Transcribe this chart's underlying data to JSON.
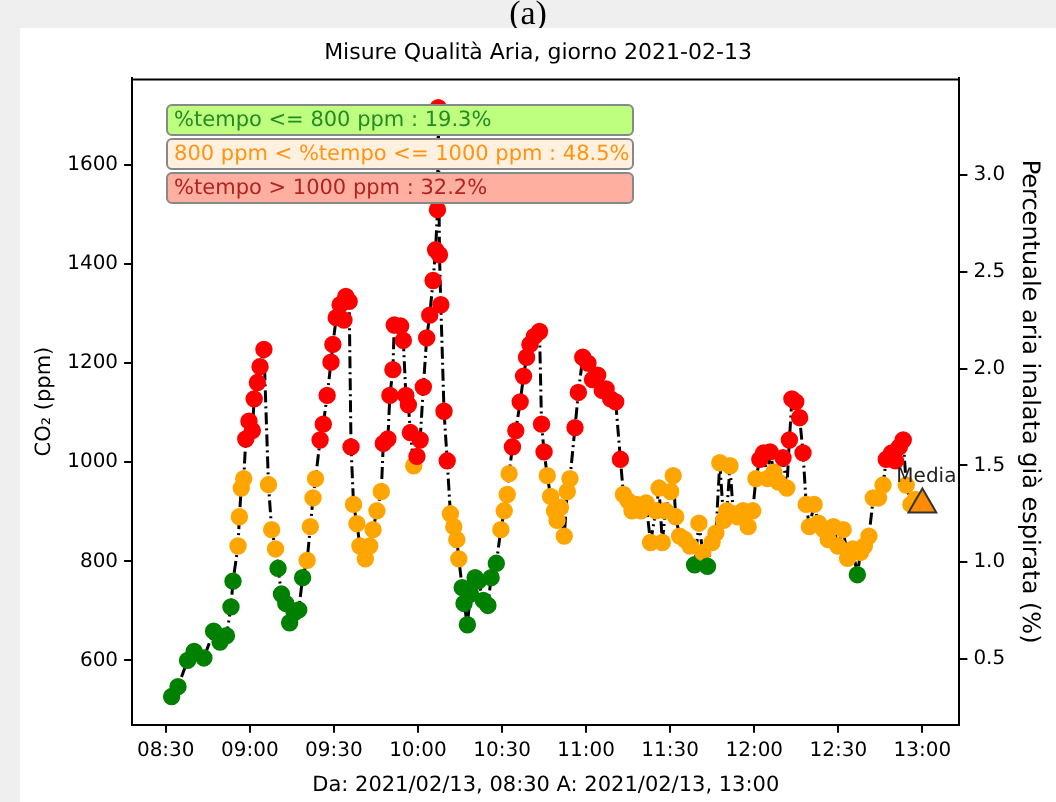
{
  "chart_data": {
    "type": "line",
    "title": "Misure Qualità Aria, giorno 2021-02-13",
    "xlabel": "Da: 2021/02/13, 08:30 A: 2021/02/13, 13:00",
    "ylabel": "CO₂ (ppm)",
    "y2label": "Percentuale aria inalata già espirata (%)",
    "xlim": [
      8.3,
      13.22
    ],
    "xticks": [
      {
        "value": 8.5,
        "label": "08:30"
      },
      {
        "value": 9,
        "label": "09:00"
      },
      {
        "value": 9.5,
        "label": "09:30"
      },
      {
        "value": 10,
        "label": "10:00"
      },
      {
        "value": 10.5,
        "label": "10:30"
      },
      {
        "value": 11,
        "label": "11:00"
      },
      {
        "value": 11.5,
        "label": "11:30"
      },
      {
        "value": 12,
        "label": "12:00"
      },
      {
        "value": 12.5,
        "label": "12:30"
      },
      {
        "value": 13,
        "label": "13:00"
      }
    ],
    "ylim": [
      470,
      1775
    ],
    "yticks": [
      600,
      800,
      1000,
      1200,
      1400,
      1600
    ],
    "y2lim": [
      0.16,
      3.5
    ],
    "y2ticks": [
      {
        "value": 0.5,
        "label": "0.5"
      },
      {
        "value": 1,
        "label": "1.0"
      },
      {
        "value": 1.5,
        "label": "1.5"
      },
      {
        "value": 2,
        "label": "2.0"
      },
      {
        "value": 2.5,
        "label": "2.5"
      },
      {
        "value": 3,
        "label": "3.0"
      }
    ],
    "grid": false,
    "legend": false,
    "marker": "circle",
    "line_style": "dashed",
    "annotations": [
      "%tempo <= 800 ppm : 19.3%",
      "800 ppm < %tempo <= 1000 ppm : 48.5%",
      "%tempo > 1000 ppm : 32.2%",
      "(a)",
      {
        "text": "Media",
        "x": 13.0,
        "y": 915
      }
    ],
    "series": [
      {
        "color": "#000000",
        "x": [
          8.535,
          8.573,
          8.63,
          8.669,
          8.727,
          8.785,
          8.823,
          8.861,
          8.888,
          8.9,
          8.93,
          8.938,
          8.949,
          8.964,
          8.976,
          8.995,
          9.015,
          9.026,
          9.045,
          9.061,
          9.084,
          9.111,
          9.13,
          9.153,
          9.168,
          9.188,
          9.214,
          9.237,
          9.264,
          9.291,
          9.314,
          9.341,
          9.36,
          9.376,
          9.391,
          9.418,
          9.437,
          9.46,
          9.483,
          9.494,
          9.514,
          9.537,
          9.56,
          9.571,
          9.591,
          9.602,
          9.617,
          9.637,
          9.655,
          9.687,
          9.713,
          9.733,
          9.756,
          9.782,
          9.794,
          9.821,
          9.833,
          9.851,
          9.859,
          9.897,
          9.913,
          9.928,
          9.943,
          9.955,
          9.975,
          9.994,
          10.013,
          10.032,
          10.052,
          10.07,
          10.09,
          10.105,
          10.116,
          10.121,
          10.128,
          10.136,
          10.155,
          10.174,
          10.193,
          10.213,
          10.231,
          10.243,
          10.263,
          10.274,
          10.294,
          10.312,
          10.34,
          10.358,
          10.389,
          10.416,
          10.435,
          10.466,
          10.493,
          10.513,
          10.531,
          10.542,
          10.562,
          10.582,
          10.608,
          10.628,
          10.646,
          10.666,
          10.692,
          10.723,
          10.735,
          10.75,
          10.769,
          10.789,
          10.812,
          10.827,
          10.847,
          10.87,
          10.888,
          10.904,
          10.934,
          10.954,
          10.98,
          11.011,
          11.038,
          11.069,
          11.096,
          11.119,
          11.146,
          11.176,
          11.204,
          11.222,
          11.25,
          11.273,
          11.299,
          11.326,
          11.357,
          11.383,
          11.415,
          11.434,
          11.453,
          11.472,
          11.503,
          11.518,
          11.533,
          11.556,
          11.587,
          11.618,
          11.645,
          11.671,
          11.694,
          11.722,
          11.749,
          11.772,
          11.795,
          11.818,
          11.837,
          11.856,
          11.875,
          11.902,
          11.933,
          11.964,
          11.991,
          12.01,
          12.033,
          12.056,
          12.079,
          12.094,
          12.117,
          12.144,
          12.171,
          12.194,
          12.209,
          12.224,
          12.247,
          12.27,
          12.29,
          12.309,
          12.328,
          12.356,
          12.382,
          12.413,
          12.44,
          12.471,
          12.497,
          12.529,
          12.555,
          12.586,
          12.613,
          12.632,
          12.655,
          12.682,
          12.708,
          12.739,
          12.766,
          12.785,
          12.817,
          12.84,
          12.863,
          12.886,
          12.904,
          12.932,
          12.958
        ],
        "values": [
          527,
          547,
          600,
          618,
          605,
          659,
          637,
          650,
          708,
          760,
          831,
          890,
          948,
          967,
          1047,
          1083,
          1064,
          1128,
          1161,
          1193,
          1228,
          955,
          864,
          825,
          786,
          734,
          715,
          676,
          696,
          702,
          767,
          802,
          870,
          928,
          967,
          1045,
          1077,
          1135,
          1202,
          1238,
          1292,
          1318,
          1287,
          1335,
          1325,
          1031,
          915,
          876,
          831,
          805,
          831,
          864,
          902,
          941,
          1038,
          1047,
          1135,
          1187,
          1277,
          1275,
          1246,
          1135,
          1116,
          1060,
          993,
          1012,
          1045,
          1152,
          1251,
          1297,
          1367,
          1429,
          1510,
          1716,
          1419,
          1318,
          1103,
          1003,
          896,
          870,
          844,
          805,
          747,
          715,
          672,
          734,
          767,
          760,
          721,
          711,
          767,
          796,
          864,
          902,
          935,
          977,
          1031,
          1064,
          1122,
          1174,
          1212,
          1238,
          1254,
          1264,
          1077,
          1021,
          973,
          931,
          902,
          883,
          909,
          851,
          941,
          967,
          1070,
          1141,
          1212,
          1200,
          1167,
          1176,
          1145,
          1148,
          1128,
          1122,
          1006,
          935,
          922,
          902,
          915,
          902,
          918,
          838,
          902,
          948,
          838,
          902,
          941,
          973,
          890,
          851,
          844,
          831,
          793,
          877,
          818,
          790,
          838,
          857,
          999,
          883,
          902,
          993,
          896,
          890,
          902,
          870,
          902,
          967,
          1006,
          1019,
          967,
          1021,
          980,
          960,
          1009,
          948,
          1045,
          1128,
          1122,
          1090,
          1019,
          915,
          870,
          915,
          877,
          864,
          844,
          870,
          831,
          864,
          806,
          825,
          773,
          818,
          831,
          851,
          928,
          928,
          954,
          1006,
          1019,
          1003,
          1031,
          1045,
          954,
          915,
          925
        ],
        "colors": [
          "#008000",
          "#008000",
          "#008000",
          "#008000",
          "#008000",
          "#008000",
          "#008000",
          "#008000",
          "#008000",
          "#008000",
          "#ffa500",
          "#ffa500",
          "#ffa500",
          "#ffa500",
          "#ff0000",
          "#ff0000",
          "#ff0000",
          "#ff0000",
          "#ff0000",
          "#ff0000",
          "#ff0000",
          "#ffa500",
          "#ffa500",
          "#ffa500",
          "#008000",
          "#008000",
          "#008000",
          "#008000",
          "#008000",
          "#008000",
          "#008000",
          "#ffa500",
          "#ffa500",
          "#ffa500",
          "#ffa500",
          "#ff0000",
          "#ff0000",
          "#ff0000",
          "#ff0000",
          "#ff0000",
          "#ff0000",
          "#ff0000",
          "#ff0000",
          "#ff0000",
          "#ff0000",
          "#ff0000",
          "#ffa500",
          "#ffa500",
          "#ffa500",
          "#ffa500",
          "#ffa500",
          "#ffa500",
          "#ffa500",
          "#ffa500",
          "#ff0000",
          "#ff0000",
          "#ff0000",
          "#ff0000",
          "#ff0000",
          "#ff0000",
          "#ff0000",
          "#ff0000",
          "#ff0000",
          "#ff0000",
          "#ffa500",
          "#ff0000",
          "#ff0000",
          "#ff0000",
          "#ff0000",
          "#ff0000",
          "#ff0000",
          "#ff0000",
          "#ff0000",
          "#ff0000",
          "#ff0000",
          "#ff0000",
          "#ff0000",
          "#ff0000",
          "#ffa500",
          "#ffa500",
          "#ffa500",
          "#ffa500",
          "#008000",
          "#008000",
          "#008000",
          "#008000",
          "#008000",
          "#008000",
          "#008000",
          "#008000",
          "#008000",
          "#008000",
          "#ffa500",
          "#ffa500",
          "#ffa500",
          "#ffa500",
          "#ff0000",
          "#ff0000",
          "#ff0000",
          "#ff0000",
          "#ff0000",
          "#ff0000",
          "#ff0000",
          "#ff0000",
          "#ff0000",
          "#ff0000",
          "#ffa500",
          "#ffa500",
          "#ffa500",
          "#ffa500",
          "#ffa500",
          "#ffa500",
          "#ffa500",
          "#ffa500",
          "#ff0000",
          "#ff0000",
          "#ff0000",
          "#ff0000",
          "#ff0000",
          "#ff0000",
          "#ff0000",
          "#ff0000",
          "#ff0000",
          "#ff0000",
          "#ff0000",
          "#ffa500",
          "#ffa500",
          "#ffa500",
          "#ffa500",
          "#ffa500",
          "#ffa500",
          "#ffa500",
          "#ffa500",
          "#ffa500",
          "#ffa500",
          "#ffa500",
          "#ffa500",
          "#ffa500",
          "#ffa500",
          "#ffa500",
          "#ffa500",
          "#ffa500",
          "#008000",
          "#ffa500",
          "#ffa500",
          "#008000",
          "#ffa500",
          "#ffa500",
          "#ffa500",
          "#ffa500",
          "#ffa500",
          "#ffa500",
          "#ffa500",
          "#ffa500",
          "#ffa500",
          "#ffa500",
          "#ffa500",
          "#ffa500",
          "#ff0000",
          "#ff0000",
          "#ffa500",
          "#ff0000",
          "#ffa500",
          "#ffa500",
          "#ff0000",
          "#ffa500",
          "#ff0000",
          "#ff0000",
          "#ff0000",
          "#ff0000",
          "#ff0000",
          "#ffa500",
          "#ffa500",
          "#ffa500",
          "#ffa500",
          "#ffa500",
          "#ffa500",
          "#ffa500",
          "#ffa500",
          "#ffa500",
          "#ffa500",
          "#ffa500",
          "#008000",
          "#ffa500",
          "#ffa500",
          "#ffa500",
          "#ffa500",
          "#ffa500",
          "#ffa500",
          "#ff0000",
          "#ff0000",
          "#ff0000",
          "#ff0000",
          "#ff0000",
          "#ffa500",
          "#ffa500",
          "#ffa500"
        ]
      },
      {
        "type": "scatter",
        "color": "#ff8c00",
        "marker": "triangle",
        "x": [
          13.0
        ],
        "values": [
          915
        ]
      }
    ]
  }
}
